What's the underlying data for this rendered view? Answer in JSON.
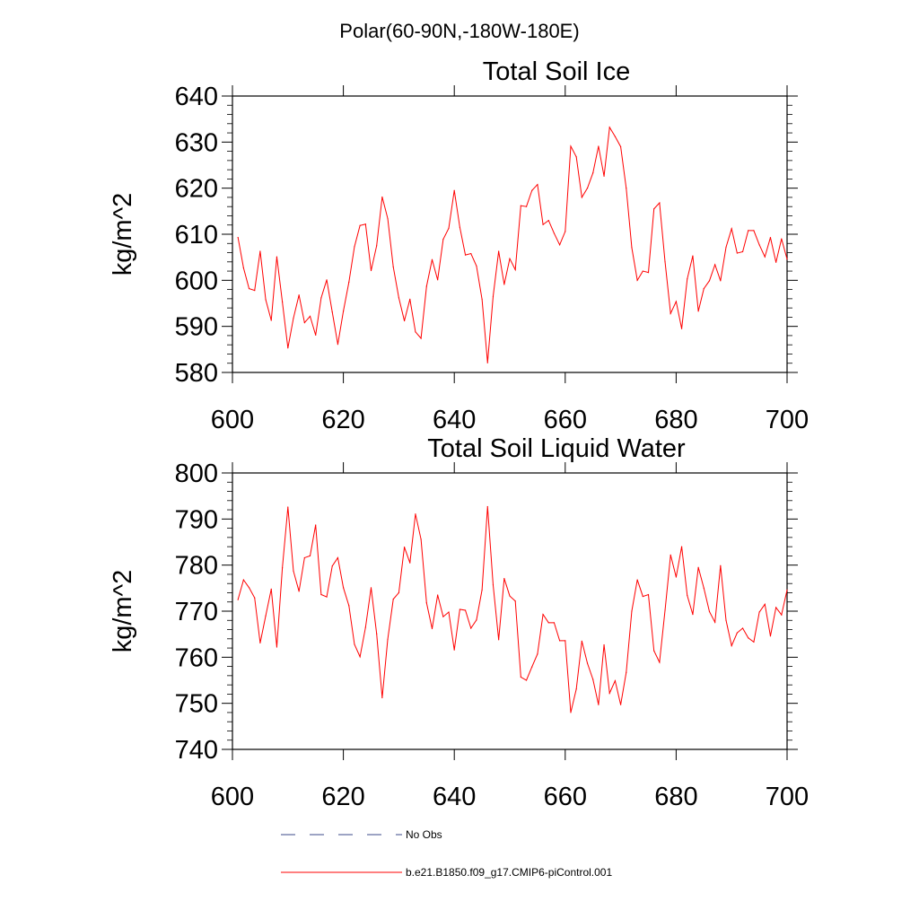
{
  "figure": {
    "suptitle": "Polar(60-90N,-180W-180E)"
  },
  "chart_data": [
    {
      "type": "line",
      "title": "Total Soil Ice",
      "xlabel": "",
      "ylabel": "kg/m^2",
      "xlim": [
        600,
        700
      ],
      "ylim": [
        580,
        640
      ],
      "xticks": [
        600,
        620,
        640,
        660,
        680,
        700
      ],
      "xtick_labels": [
        "600",
        "620",
        "640",
        "660",
        "680",
        "700"
      ],
      "yticks": [
        580,
        590,
        600,
        610,
        620,
        630,
        640
      ],
      "ytick_labels": [
        "580",
        "590",
        "600",
        "610",
        "620",
        "630",
        "640"
      ],
      "grid": false,
      "series": [
        {
          "name": "b.e21.B1850.f09_g17.CMIP6-piControl.001",
          "color": "#ff0000",
          "x": [
            601,
            602,
            603,
            604,
            605,
            606,
            607,
            608,
            609,
            610,
            611,
            612,
            613,
            614,
            615,
            616,
            617,
            618,
            619,
            620,
            621,
            622,
            623,
            624,
            625,
            626,
            627,
            628,
            629,
            630,
            631,
            632,
            633,
            634,
            635,
            636,
            637,
            638,
            639,
            640,
            641,
            642,
            643,
            644,
            645,
            646,
            647,
            648,
            649,
            650,
            651,
            652,
            653,
            654,
            655,
            656,
            657,
            658,
            659,
            660,
            661,
            662,
            663,
            664,
            665,
            666,
            667,
            668,
            669,
            670,
            671,
            672,
            673,
            674,
            675,
            676,
            677,
            678,
            679,
            680,
            681,
            682,
            683,
            684,
            685,
            686,
            687,
            688,
            689,
            690,
            691,
            692,
            693,
            694,
            695,
            696,
            697,
            698,
            699,
            700
          ],
          "values": [
            609.3,
            602.7,
            598.2,
            597.8,
            606.3,
            595.8,
            591.3,
            605.1,
            595.3,
            585.3,
            591.8,
            596.8,
            590.8,
            592.2,
            588.1,
            596.2,
            600.1,
            593.1,
            586.1,
            593.3,
            599.6,
            607.3,
            611.9,
            612.2,
            602.1,
            607.5,
            618.1,
            613.4,
            602.9,
            596.2,
            591.2,
            595.9,
            588.8,
            587.4,
            598.7,
            604.5,
            600.1,
            608.9,
            611.3,
            619.5,
            611.5,
            605.5,
            605.8,
            603.1,
            595.9,
            582.1,
            596.5,
            606.3,
            599.1,
            604.7,
            602.3,
            616.2,
            616.0,
            619.5,
            620.8,
            612.1,
            613.0,
            610.2,
            607.7,
            610.6,
            629.1,
            626.8,
            618.0,
            620.0,
            623.3,
            629.1,
            622.6,
            633.2,
            631.2,
            629.0,
            620.0,
            607.1,
            600.0,
            602.0,
            601.7,
            615.5,
            616.8,
            604.0,
            592.8,
            595.4,
            589.5,
            600.3,
            605.3,
            593.3,
            598.2,
            599.9,
            603.4,
            599.9,
            607.2,
            611.2,
            605.9,
            606.2,
            610.8,
            610.8,
            607.7,
            605.1,
            609.3,
            603.9,
            609.0,
            604.6
          ]
        }
      ]
    },
    {
      "type": "line",
      "title": "Total Soil Liquid Water",
      "xlabel": "",
      "ylabel": "kg/m^2",
      "xlim": [
        600,
        700
      ],
      "ylim": [
        740,
        800
      ],
      "xticks": [
        600,
        620,
        640,
        660,
        680,
        700
      ],
      "xtick_labels": [
        "600",
        "620",
        "640",
        "660",
        "680",
        "700"
      ],
      "yticks": [
        740,
        750,
        760,
        770,
        780,
        790,
        800
      ],
      "ytick_labels": [
        "740",
        "750",
        "760",
        "770",
        "780",
        "790",
        "800"
      ],
      "grid": false,
      "series": [
        {
          "name": "b.e21.B1850.f09_g17.CMIP6-piControl.001",
          "color": "#ff0000",
          "x": [
            601,
            602,
            603,
            604,
            605,
            606,
            607,
            608,
            609,
            610,
            611,
            612,
            613,
            614,
            615,
            616,
            617,
            618,
            619,
            620,
            621,
            622,
            623,
            624,
            625,
            626,
            627,
            628,
            629,
            630,
            631,
            632,
            633,
            634,
            635,
            636,
            637,
            638,
            639,
            640,
            641,
            642,
            643,
            644,
            645,
            646,
            647,
            648,
            649,
            650,
            651,
            652,
            653,
            654,
            655,
            656,
            657,
            658,
            659,
            660,
            661,
            662,
            663,
            664,
            665,
            666,
            667,
            668,
            669,
            670,
            671,
            672,
            673,
            674,
            675,
            676,
            677,
            678,
            679,
            680,
            681,
            682,
            683,
            684,
            685,
            686,
            687,
            688,
            689,
            690,
            691,
            692,
            693,
            694,
            695,
            696,
            697,
            698,
            699,
            700
          ],
          "values": [
            772.5,
            776.8,
            775.1,
            772.9,
            763.1,
            769.0,
            774.8,
            762.2,
            779.4,
            792.6,
            778.7,
            774.3,
            781.6,
            782.0,
            788.7,
            773.6,
            773.1,
            779.8,
            781.6,
            775.1,
            771.2,
            762.8,
            760.1,
            766.5,
            775.1,
            765.1,
            751.2,
            763.9,
            772.6,
            774.0,
            783.9,
            780.5,
            791.1,
            785.6,
            771.8,
            766.2,
            773.5,
            768.8,
            769.8,
            761.6,
            770.4,
            770.2,
            766.3,
            768.1,
            774.6,
            792.7,
            775.7,
            763.8,
            777.1,
            773.3,
            772.2,
            755.7,
            755.0,
            757.9,
            760.7,
            769.3,
            767.5,
            767.5,
            763.6,
            763.6,
            748.0,
            753.1,
            763.5,
            758.7,
            755.2,
            749.7,
            762.7,
            752.2,
            754.9,
            749.7,
            756.7,
            770.0,
            776.8,
            773.2,
            773.6,
            761.4,
            758.9,
            770.2,
            782.2,
            777.4,
            784.0,
            773.4,
            769.3,
            779.5,
            775.0,
            769.9,
            767.6,
            779.9,
            768.0,
            762.5,
            765.3,
            766.3,
            764.2,
            763.3,
            769.8,
            771.5,
            764.6,
            770.8,
            769.2,
            774.6
          ]
        }
      ]
    }
  ],
  "legend": {
    "items": [
      {
        "label": "No Obs",
        "color": "#3b4a8a",
        "style": "dashed"
      },
      {
        "label": "b.e21.B1850.f09_g17.CMIP6-piControl.001",
        "color": "#ff0000",
        "style": "solid"
      }
    ]
  }
}
